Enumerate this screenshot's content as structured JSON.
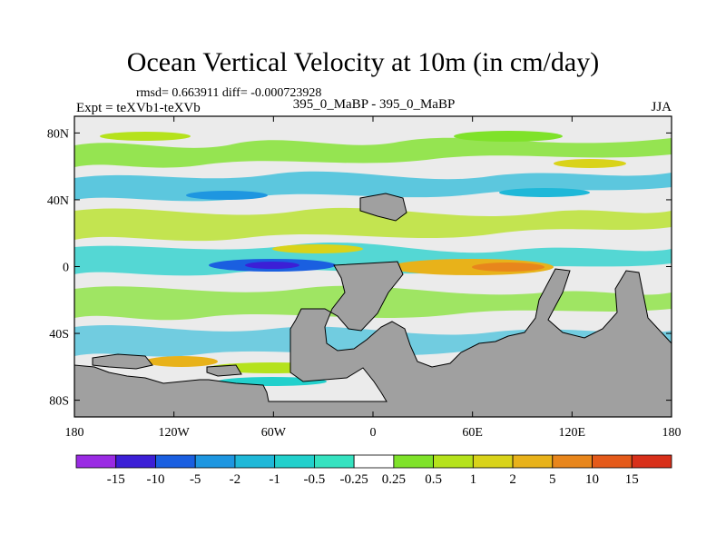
{
  "chart_data": {
    "type": "heatmap",
    "title": "Ocean Vertical Velocity at 10m (in cm/day)",
    "stats_line": "rmsd= 0.663911 diff= -0.000723928",
    "expt_label": "Expt = teXVb1-teXVb",
    "center_label": "395_0_MaBP - 395_0_MaBP",
    "season": "JJA",
    "x_ticks": [
      {
        "value": -180,
        "label": "180"
      },
      {
        "value": -120,
        "label": "120W"
      },
      {
        "value": -60,
        "label": "60W"
      },
      {
        "value": 0,
        "label": "0"
      },
      {
        "value": 60,
        "label": "60E"
      },
      {
        "value": 120,
        "label": "120E"
      },
      {
        "value": 180,
        "label": "180"
      }
    ],
    "y_ticks": [
      {
        "value": 80,
        "label": "80N"
      },
      {
        "value": 40,
        "label": "40N"
      },
      {
        "value": 0,
        "label": "0"
      },
      {
        "value": -40,
        "label": "40S"
      },
      {
        "value": -80,
        "label": "80S"
      }
    ],
    "xlim": [
      -180,
      180
    ],
    "ylim": [
      -90,
      90
    ],
    "colorbar": {
      "labels": [
        "-15",
        "-10",
        "-5",
        "-2",
        "-1",
        "-0.5",
        "-0.25",
        "0.25",
        "0.5",
        "1",
        "2",
        "5",
        "10",
        "15"
      ],
      "colors": [
        "#9a2be3",
        "#3c1fd6",
        "#1a5fe0",
        "#1e96e0",
        "#1fb8d8",
        "#22d0cc",
        "#35e2c0",
        "#ffffff",
        "#7fe22a",
        "#b5e21c",
        "#d9d31a",
        "#e8b21a",
        "#e8861c",
        "#e45a1a",
        "#d8301a"
      ]
    },
    "colors": {
      "land": "#a0a0a0",
      "neutral": "#ebebeb"
    }
  }
}
